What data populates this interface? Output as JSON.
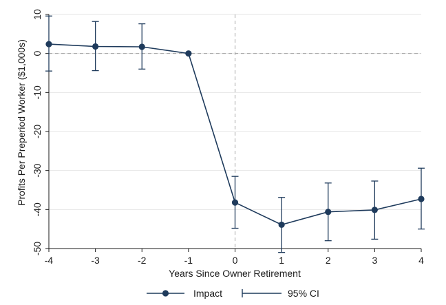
{
  "chart_data": {
    "type": "line",
    "xlabel": "Years Since Owner Retirement",
    "ylabel": "Profits Per Preperiod Worker ($1,000s)",
    "xlim": [
      -4,
      4
    ],
    "ylim": [
      -50,
      10
    ],
    "x_ticks": [
      -4,
      -3,
      -2,
      -1,
      0,
      1,
      2,
      3,
      4
    ],
    "y_ticks": [
      10,
      0,
      -10,
      -20,
      -30,
      -40,
      -50
    ],
    "x": [
      -4,
      -3,
      -2,
      -1,
      0,
      1,
      2,
      3,
      4
    ],
    "series": [
      {
        "name": "Impact",
        "values": [
          2.4,
          1.8,
          1.7,
          0,
          -38.2,
          -43.9,
          -40.6,
          -40.1,
          -37.3
        ],
        "ci_upper": [
          9.6,
          8.2,
          7.6,
          0,
          -31.5,
          -36.9,
          -33.2,
          -32.7,
          -29.4
        ],
        "ci_lower": [
          -4.5,
          -4.4,
          -4.0,
          0,
          -44.8,
          -51.0,
          -48.0,
          -47.6,
          -45.0
        ],
        "color": "#1f3b5c"
      }
    ],
    "ci_legend": "95% CI",
    "reference_lines": {
      "horizontal_at_y": 0,
      "vertical_at_x": 0,
      "style": "dashed",
      "color": "#a0a0a0"
    },
    "grid": "horizontal",
    "grid_color": "#e6e6e6",
    "legend_position": "bottom"
  }
}
